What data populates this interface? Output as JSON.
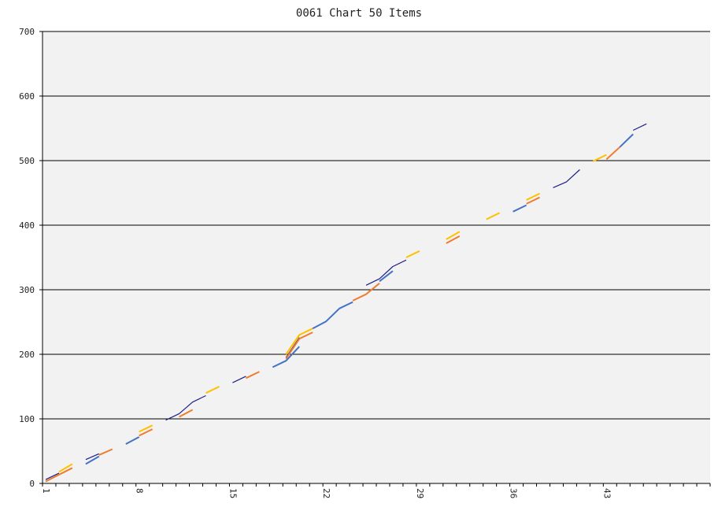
{
  "chart_data": {
    "type": "line",
    "title": "0061 Chart 50 Items",
    "xlabel": "",
    "ylabel": "",
    "ylim": [
      0,
      700
    ],
    "y_ticks": [
      0,
      100,
      200,
      300,
      400,
      500,
      600,
      700
    ],
    "x_range": [
      1,
      50
    ],
    "x_ticks": [
      1,
      8,
      15,
      22,
      29,
      36,
      43
    ],
    "grid": true,
    "legend": "none",
    "background_color": "#f2f2f2",
    "gridline_color": "#000000",
    "colors": [
      "#1f1f8a",
      "#4472c4",
      "#ed7d31",
      "#ffc000"
    ],
    "x": [
      1,
      2,
      3,
      4,
      5,
      6,
      7,
      8,
      9,
      10,
      11,
      12,
      13,
      14,
      15,
      16,
      17,
      18,
      19,
      20,
      21,
      22,
      23,
      24,
      25,
      26,
      27,
      28,
      29,
      30,
      31,
      32,
      33,
      34,
      35,
      36,
      37,
      38,
      39,
      40,
      41,
      42,
      43,
      44,
      45,
      46,
      47,
      48,
      49,
      50
    ],
    "segments": [
      {
        "color": "#1f1f8a",
        "points": [
          [
            1,
            6
          ],
          [
            2,
            16
          ]
        ]
      },
      {
        "color": "#ed7d31",
        "points": [
          [
            1,
            3
          ],
          [
            3,
            24
          ]
        ]
      },
      {
        "color": "#ffc000",
        "points": [
          [
            2,
            18
          ],
          [
            3,
            30
          ]
        ]
      },
      {
        "color": "#1f1f8a",
        "points": [
          [
            4,
            37
          ],
          [
            5,
            46
          ]
        ]
      },
      {
        "color": "#4472c4",
        "points": [
          [
            4,
            30
          ],
          [
            5,
            42
          ]
        ]
      },
      {
        "color": "#ed7d31",
        "points": [
          [
            5,
            44
          ],
          [
            6,
            53
          ]
        ]
      },
      {
        "color": "#4472c4",
        "points": [
          [
            7,
            61
          ],
          [
            8,
            72
          ]
        ]
      },
      {
        "color": "#ed7d31",
        "points": [
          [
            8,
            74
          ],
          [
            9,
            84
          ]
        ]
      },
      {
        "color": "#ffc000",
        "points": [
          [
            8,
            80
          ],
          [
            9,
            90
          ]
        ]
      },
      {
        "color": "#1f1f8a",
        "points": [
          [
            10,
            98
          ],
          [
            11,
            108
          ],
          [
            12,
            126
          ],
          [
            13,
            136
          ]
        ]
      },
      {
        "color": "#ed7d31",
        "points": [
          [
            11,
            103
          ],
          [
            12,
            114
          ]
        ]
      },
      {
        "color": "#ffc000",
        "points": [
          [
            13,
            140
          ],
          [
            14,
            150
          ]
        ]
      },
      {
        "color": "#1f1f8a",
        "points": [
          [
            15,
            156
          ],
          [
            16,
            166
          ]
        ]
      },
      {
        "color": "#ed7d31",
        "points": [
          [
            16,
            163
          ],
          [
            17,
            173
          ]
        ]
      },
      {
        "color": "#4472c4",
        "points": [
          [
            18,
            180
          ],
          [
            19,
            190
          ],
          [
            20,
            212
          ]
        ]
      },
      {
        "color": "#1f1f8a",
        "points": [
          [
            19,
            195
          ],
          [
            20,
            226
          ]
        ]
      },
      {
        "color": "#ed7d31",
        "points": [
          [
            19,
            193
          ],
          [
            20,
            224
          ],
          [
            21,
            234
          ]
        ]
      },
      {
        "color": "#ffc000",
        "points": [
          [
            19,
            200
          ],
          [
            20,
            230
          ],
          [
            21,
            240
          ]
        ]
      },
      {
        "color": "#4472c4",
        "points": [
          [
            21,
            240
          ],
          [
            22,
            251
          ],
          [
            23,
            271
          ],
          [
            24,
            281
          ]
        ]
      },
      {
        "color": "#ed7d31",
        "points": [
          [
            24,
            283
          ],
          [
            25,
            293
          ],
          [
            26,
            310
          ]
        ]
      },
      {
        "color": "#1f1f8a",
        "points": [
          [
            25,
            307
          ],
          [
            26,
            317
          ],
          [
            27,
            336
          ],
          [
            28,
            346
          ]
        ]
      },
      {
        "color": "#4472c4",
        "points": [
          [
            26,
            313
          ],
          [
            27,
            329
          ]
        ]
      },
      {
        "color": "#ffc000",
        "points": [
          [
            28,
            350
          ],
          [
            29,
            360
          ]
        ]
      },
      {
        "color": "#ed7d31",
        "points": [
          [
            31,
            372
          ],
          [
            32,
            383
          ]
        ]
      },
      {
        "color": "#ffc000",
        "points": [
          [
            31,
            378
          ],
          [
            32,
            390
          ]
        ]
      },
      {
        "color": "#ffc000",
        "points": [
          [
            34,
            409
          ],
          [
            35,
            419
          ]
        ]
      },
      {
        "color": "#4472c4",
        "points": [
          [
            36,
            421
          ],
          [
            37,
            431
          ]
        ]
      },
      {
        "color": "#ed7d31",
        "points": [
          [
            37,
            433
          ],
          [
            38,
            443
          ]
        ]
      },
      {
        "color": "#ffc000",
        "points": [
          [
            37,
            439
          ],
          [
            38,
            449
          ]
        ]
      },
      {
        "color": "#1f1f8a",
        "points": [
          [
            39,
            458
          ],
          [
            40,
            467
          ],
          [
            41,
            486
          ]
        ]
      },
      {
        "color": "#ffc000",
        "points": [
          [
            42,
            499
          ],
          [
            43,
            509
          ]
        ]
      },
      {
        "color": "#ed7d31",
        "points": [
          [
            43,
            502
          ],
          [
            44,
            521
          ]
        ]
      },
      {
        "color": "#4472c4",
        "points": [
          [
            44,
            521
          ],
          [
            45,
            541
          ]
        ]
      },
      {
        "color": "#1f1f8a",
        "points": [
          [
            45,
            547
          ],
          [
            46,
            557
          ]
        ]
      }
    ]
  }
}
